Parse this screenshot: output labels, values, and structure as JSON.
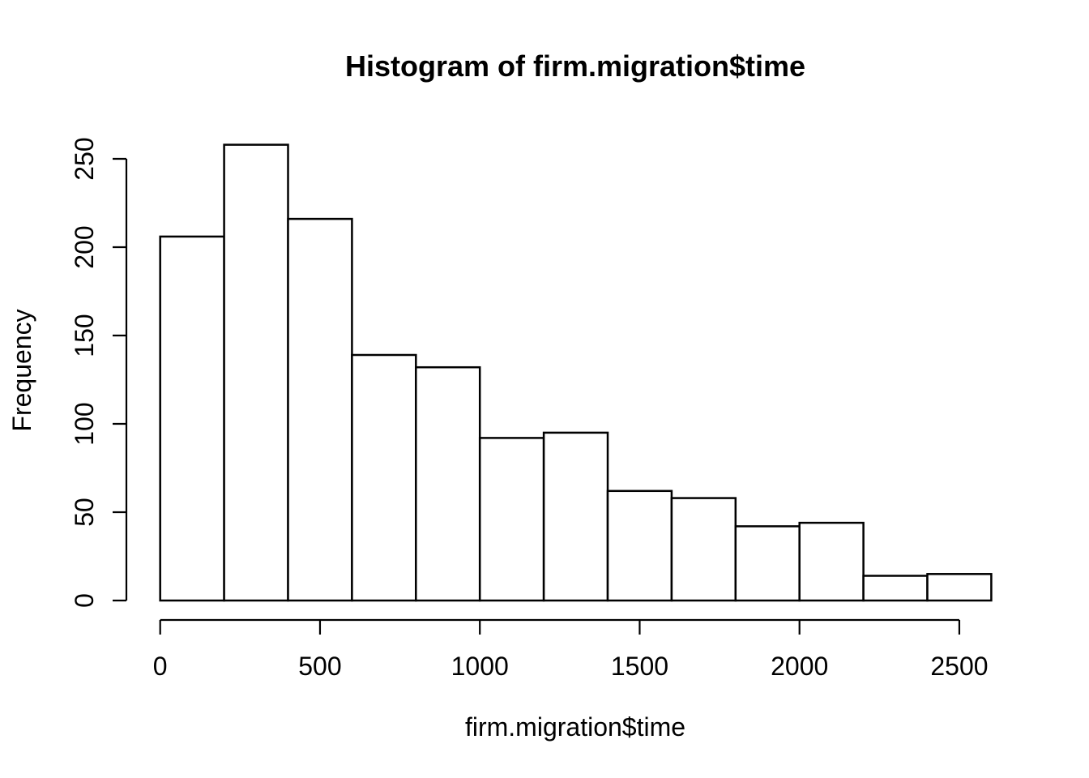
{
  "chart_data": {
    "type": "bar",
    "subtype": "histogram",
    "title": "Histogram of firm.migration$time",
    "xlabel": "firm.migration$time",
    "ylabel": "Frequency",
    "bin_breaks": [
      0,
      200,
      400,
      600,
      800,
      1000,
      1200,
      1400,
      1600,
      1800,
      2000,
      2200,
      2400,
      2600
    ],
    "counts": [
      206,
      258,
      216,
      139,
      132,
      92,
      95,
      62,
      58,
      42,
      44,
      14,
      15
    ],
    "x_ticks": [
      0,
      500,
      1000,
      1500,
      2000,
      2500
    ],
    "y_ticks": [
      0,
      50,
      100,
      150,
      200,
      250
    ],
    "xlim": [
      0,
      2600
    ],
    "ylim": [
      0,
      260
    ],
    "grid": false,
    "legend": "none",
    "colors": {
      "background": "#ffffff",
      "bar_fill": "#ffffff",
      "bar_stroke": "#000000",
      "axis": "#000000",
      "text": "#000000"
    }
  }
}
